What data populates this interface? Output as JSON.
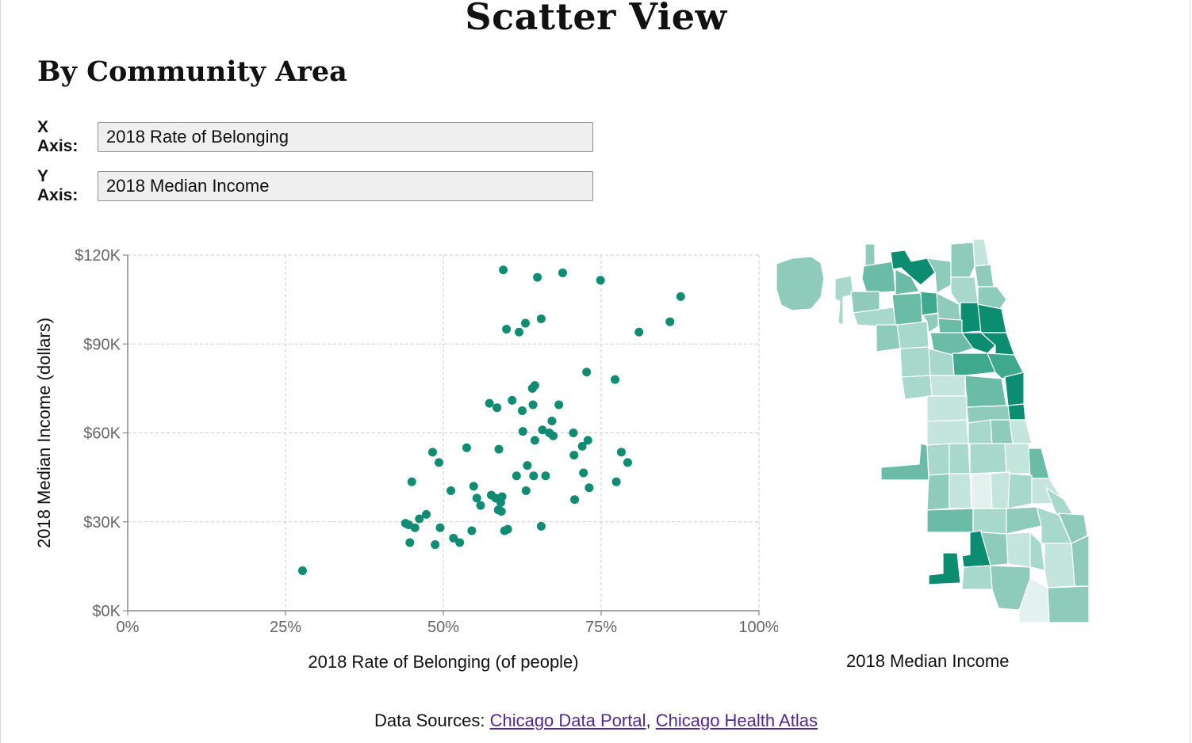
{
  "header": {
    "title": "Scatter View",
    "subtitle": "By Community Area"
  },
  "controls": {
    "x_axis_label": "X Axis:",
    "x_axis_value": "2018 Rate of Belonging",
    "y_axis_label": "Y Axis:",
    "y_axis_value": "2018 Median Income"
  },
  "map": {
    "caption": "2018 Median Income",
    "palette": [
      "#e3f2ee",
      "#c4e5dc",
      "#a8d8cb",
      "#8ecbbb",
      "#6bbca7",
      "#3ea98c",
      "#0c8c70"
    ]
  },
  "sources": {
    "label": "Data Sources:",
    "link1": "Chicago Data Portal",
    "separator": ",",
    "link2": "Chicago Health Atlas"
  },
  "colors": {
    "point": "#0f8c72",
    "grid": "#cfcfcf",
    "axis": "#888888"
  },
  "chart_data": {
    "type": "scatter",
    "title": "",
    "xlabel": "2018 Rate of Belonging (of people)",
    "ylabel": "2018 Median Income (dollars)",
    "xlim": [
      0,
      100
    ],
    "ylim": [
      0,
      120000
    ],
    "x_ticks": [
      0,
      25,
      50,
      75,
      100
    ],
    "x_tick_labels": [
      "0%",
      "25%",
      "50%",
      "75%",
      "100%"
    ],
    "y_ticks": [
      0,
      30000,
      60000,
      90000,
      120000
    ],
    "y_tick_labels": [
      "$0K",
      "$30K",
      "$60K",
      "$90K",
      "$120K"
    ],
    "grid": true,
    "points": [
      [
        27.7,
        13500
      ],
      [
        44.0,
        29500
      ],
      [
        44.5,
        29000
      ],
      [
        44.7,
        23000
      ],
      [
        45.0,
        43500
      ],
      [
        45.5,
        28000
      ],
      [
        46.2,
        31000
      ],
      [
        47.3,
        32500
      ],
      [
        48.3,
        53500
      ],
      [
        48.7,
        22300
      ],
      [
        49.3,
        50000
      ],
      [
        49.5,
        28000
      ],
      [
        51.2,
        40500
      ],
      [
        51.6,
        24500
      ],
      [
        52.6,
        23000
      ],
      [
        53.7,
        55000
      ],
      [
        54.5,
        27000
      ],
      [
        54.8,
        42000
      ],
      [
        55.3,
        38000
      ],
      [
        55.9,
        35500
      ],
      [
        57.3,
        70000
      ],
      [
        57.6,
        39000
      ],
      [
        58.3,
        38000
      ],
      [
        58.5,
        68500
      ],
      [
        58.7,
        34000
      ],
      [
        58.8,
        54500
      ],
      [
        59.1,
        36500
      ],
      [
        59.2,
        33500
      ],
      [
        59.3,
        38500
      ],
      [
        59.5,
        115000
      ],
      [
        59.7,
        27000
      ],
      [
        60.0,
        95000
      ],
      [
        60.2,
        27500
      ],
      [
        60.9,
        71000
      ],
      [
        61.6,
        45500
      ],
      [
        62.0,
        94000
      ],
      [
        62.5,
        67500
      ],
      [
        62.6,
        60500
      ],
      [
        63.0,
        97000
      ],
      [
        63.1,
        40500
      ],
      [
        63.3,
        49000
      ],
      [
        64.1,
        75000
      ],
      [
        64.2,
        69500
      ],
      [
        64.3,
        45500
      ],
      [
        64.5,
        76000
      ],
      [
        64.5,
        57500
      ],
      [
        64.9,
        112500
      ],
      [
        65.5,
        98500
      ],
      [
        65.5,
        28500
      ],
      [
        65.7,
        61000
      ],
      [
        66.2,
        45500
      ],
      [
        66.8,
        60000
      ],
      [
        67.2,
        64000
      ],
      [
        67.4,
        59000
      ],
      [
        68.3,
        69500
      ],
      [
        68.9,
        114000
      ],
      [
        70.6,
        60000
      ],
      [
        70.7,
        52500
      ],
      [
        70.8,
        37500
      ],
      [
        72.0,
        55500
      ],
      [
        72.2,
        46500
      ],
      [
        72.7,
        80500
      ],
      [
        72.9,
        57500
      ],
      [
        73.1,
        41500
      ],
      [
        74.9,
        111500
      ],
      [
        77.2,
        78000
      ],
      [
        77.4,
        43500
      ],
      [
        78.2,
        53500
      ],
      [
        79.2,
        50000
      ],
      [
        81.0,
        94000
      ],
      [
        85.9,
        97500
      ],
      [
        87.6,
        106000
      ]
    ]
  }
}
